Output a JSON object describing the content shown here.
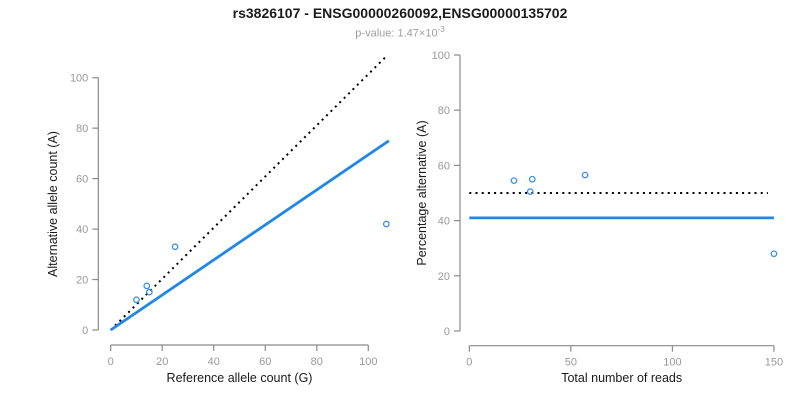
{
  "header": {
    "title": "rs3826107 - ENSG00000260092,ENSG00000135702",
    "pvalue_prefix": "p-value: 1.47×10",
    "pvalue_exponent": "-3"
  },
  "colors": {
    "accent_blue": "#1F87E8",
    "point_blue": "#3A8EE6",
    "dotted_black": "#000000",
    "axis_gray": "#8A8A8A",
    "tick_label_gray": "#999999",
    "title_black": "#1B1B1B"
  },
  "chart_data": [
    {
      "type": "scatter",
      "panel": "allele-counts",
      "xlabel": "Reference allele count (G)",
      "ylabel": "Alternative allele count (A)",
      "xlim": [
        0,
        108.5
      ],
      "ylim": [
        0,
        109
      ],
      "xticks": [
        0,
        20,
        40,
        60,
        80,
        100
      ],
      "yticks": [
        0,
        20,
        40,
        60,
        80,
        100
      ],
      "grid": false,
      "legend": null,
      "point_color": "#3A8EE6",
      "points": [
        [
          10,
          12
        ],
        [
          14,
          17.5
        ],
        [
          15,
          15
        ],
        [
          25,
          33
        ],
        [
          107,
          42
        ]
      ],
      "lines": [
        {
          "name": "identity-line",
          "style": "dotted",
          "color": "#000000",
          "x": [
            0,
            107.5
          ],
          "y": [
            0,
            109
          ]
        },
        {
          "name": "fitted-ratio-line",
          "style": "solid",
          "color": "#1F87E8",
          "x": [
            0,
            108
          ],
          "y": [
            0,
            75
          ]
        }
      ]
    },
    {
      "type": "scatter",
      "panel": "percentage-vs-reads",
      "xlabel": "Total number of reads",
      "ylabel": "Percentage alternative (A)",
      "xlim": [
        0,
        150
      ],
      "ylim": [
        0,
        100
      ],
      "xticks": [
        0,
        50,
        100,
        150
      ],
      "yticks": [
        0,
        20,
        40,
        60,
        80,
        100
      ],
      "grid": false,
      "legend": null,
      "point_color": "#3A8EE6",
      "points": [
        [
          22,
          54.5
        ],
        [
          30,
          50.5
        ],
        [
          31,
          55
        ],
        [
          57,
          56.5
        ],
        [
          150,
          28
        ]
      ],
      "lines": [
        {
          "name": "expected-50pct-line",
          "style": "dotted",
          "color": "#000000",
          "x": [
            0,
            147
          ],
          "y": [
            50,
            50
          ]
        },
        {
          "name": "observed-41pct-line",
          "style": "solid",
          "color": "#1F87E8",
          "x": [
            0,
            150
          ],
          "y": [
            41,
            41
          ]
        }
      ]
    }
  ]
}
